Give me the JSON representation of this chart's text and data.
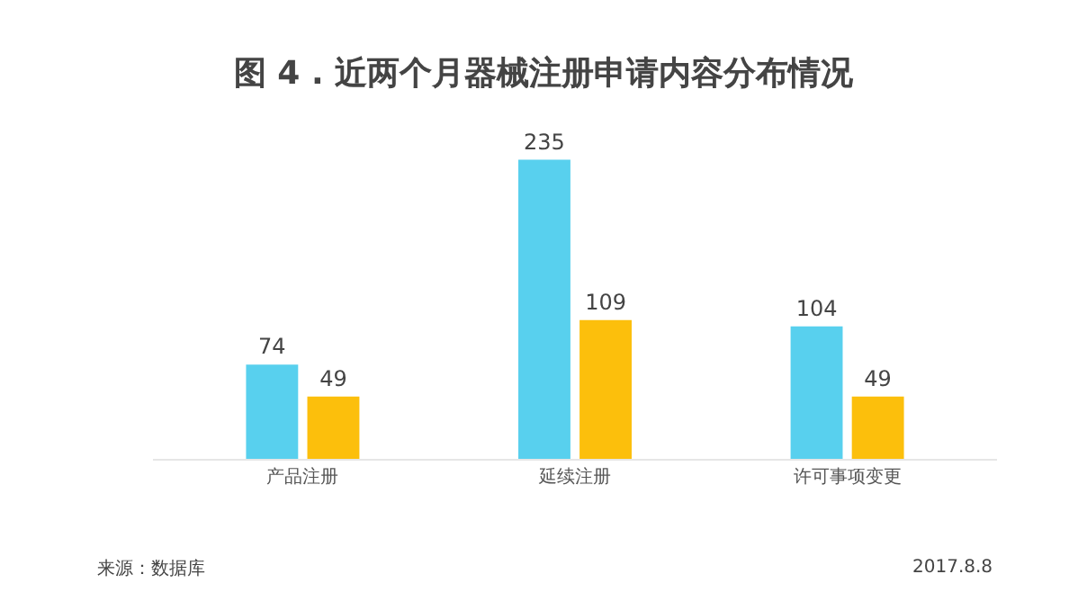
{
  "chart_data": {
    "type": "bar",
    "title": "图 4 . 近两个月器械注册申请内容分布情况",
    "categories": [
      "产品注册",
      "延续注册",
      "许可事项变更"
    ],
    "series": [
      {
        "color": "#58d0ee",
        "values": [
          74,
          235,
          104
        ]
      },
      {
        "color": "#fcbf0c",
        "values": [
          49,
          109,
          49
        ]
      }
    ],
    "tick_labels": "x",
    "data_labels": true,
    "annotations": [
      "来源：数据库",
      "2017.8.8"
    ]
  }
}
